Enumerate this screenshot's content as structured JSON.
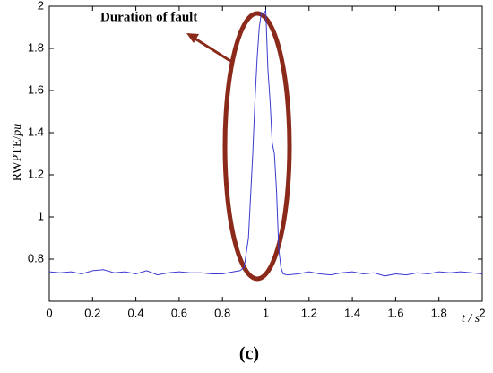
{
  "chart_data": {
    "type": "line",
    "title": "Duration of fault",
    "y_label": "RWPTE/",
    "y_label_unit": "pu",
    "x_label": "t / s",
    "caption": "(c)",
    "x": [
      0,
      0.05,
      0.1,
      0.15,
      0.2,
      0.25,
      0.3,
      0.35,
      0.4,
      0.45,
      0.5,
      0.55,
      0.6,
      0.65,
      0.7,
      0.75,
      0.8,
      0.85,
      0.88,
      0.9,
      0.92,
      0.94,
      0.95,
      0.96,
      0.97,
      0.98,
      0.99,
      1.0,
      1.01,
      1.02,
      1.03,
      1.04,
      1.05,
      1.06,
      1.07,
      1.08,
      1.1,
      1.15,
      1.2,
      1.25,
      1.3,
      1.35,
      1.4,
      1.45,
      1.5,
      1.55,
      1.6,
      1.65,
      1.7,
      1.75,
      1.8,
      1.85,
      1.9,
      1.95,
      2.0
    ],
    "series": [
      {
        "color": "#3a3ad0",
        "values": [
          0.74,
          0.735,
          0.74,
          0.73,
          0.745,
          0.75,
          0.735,
          0.74,
          0.73,
          0.745,
          0.725,
          0.735,
          0.74,
          0.735,
          0.735,
          0.73,
          0.73,
          0.74,
          0.745,
          0.76,
          0.9,
          1.3,
          1.55,
          1.75,
          1.9,
          1.97,
          1.96,
          1.98,
          1.7,
          1.55,
          1.35,
          1.3,
          1.12,
          0.85,
          0.76,
          0.73,
          0.725,
          0.73,
          0.74,
          0.73,
          0.725,
          0.735,
          0.74,
          0.73,
          0.735,
          0.72,
          0.73,
          0.725,
          0.735,
          0.73,
          0.74,
          0.735,
          0.74,
          0.735,
          0.73
        ]
      }
    ],
    "xlim": [
      0,
      2
    ],
    "ylim": [
      0.6,
      2
    ],
    "xticks": [
      0,
      0.2,
      0.4,
      0.6,
      0.8,
      1,
      1.2,
      1.4,
      1.6,
      1.8,
      2
    ],
    "yticks": [
      0.8,
      1,
      1.2,
      1.4,
      1.6,
      1.8,
      2
    ]
  }
}
